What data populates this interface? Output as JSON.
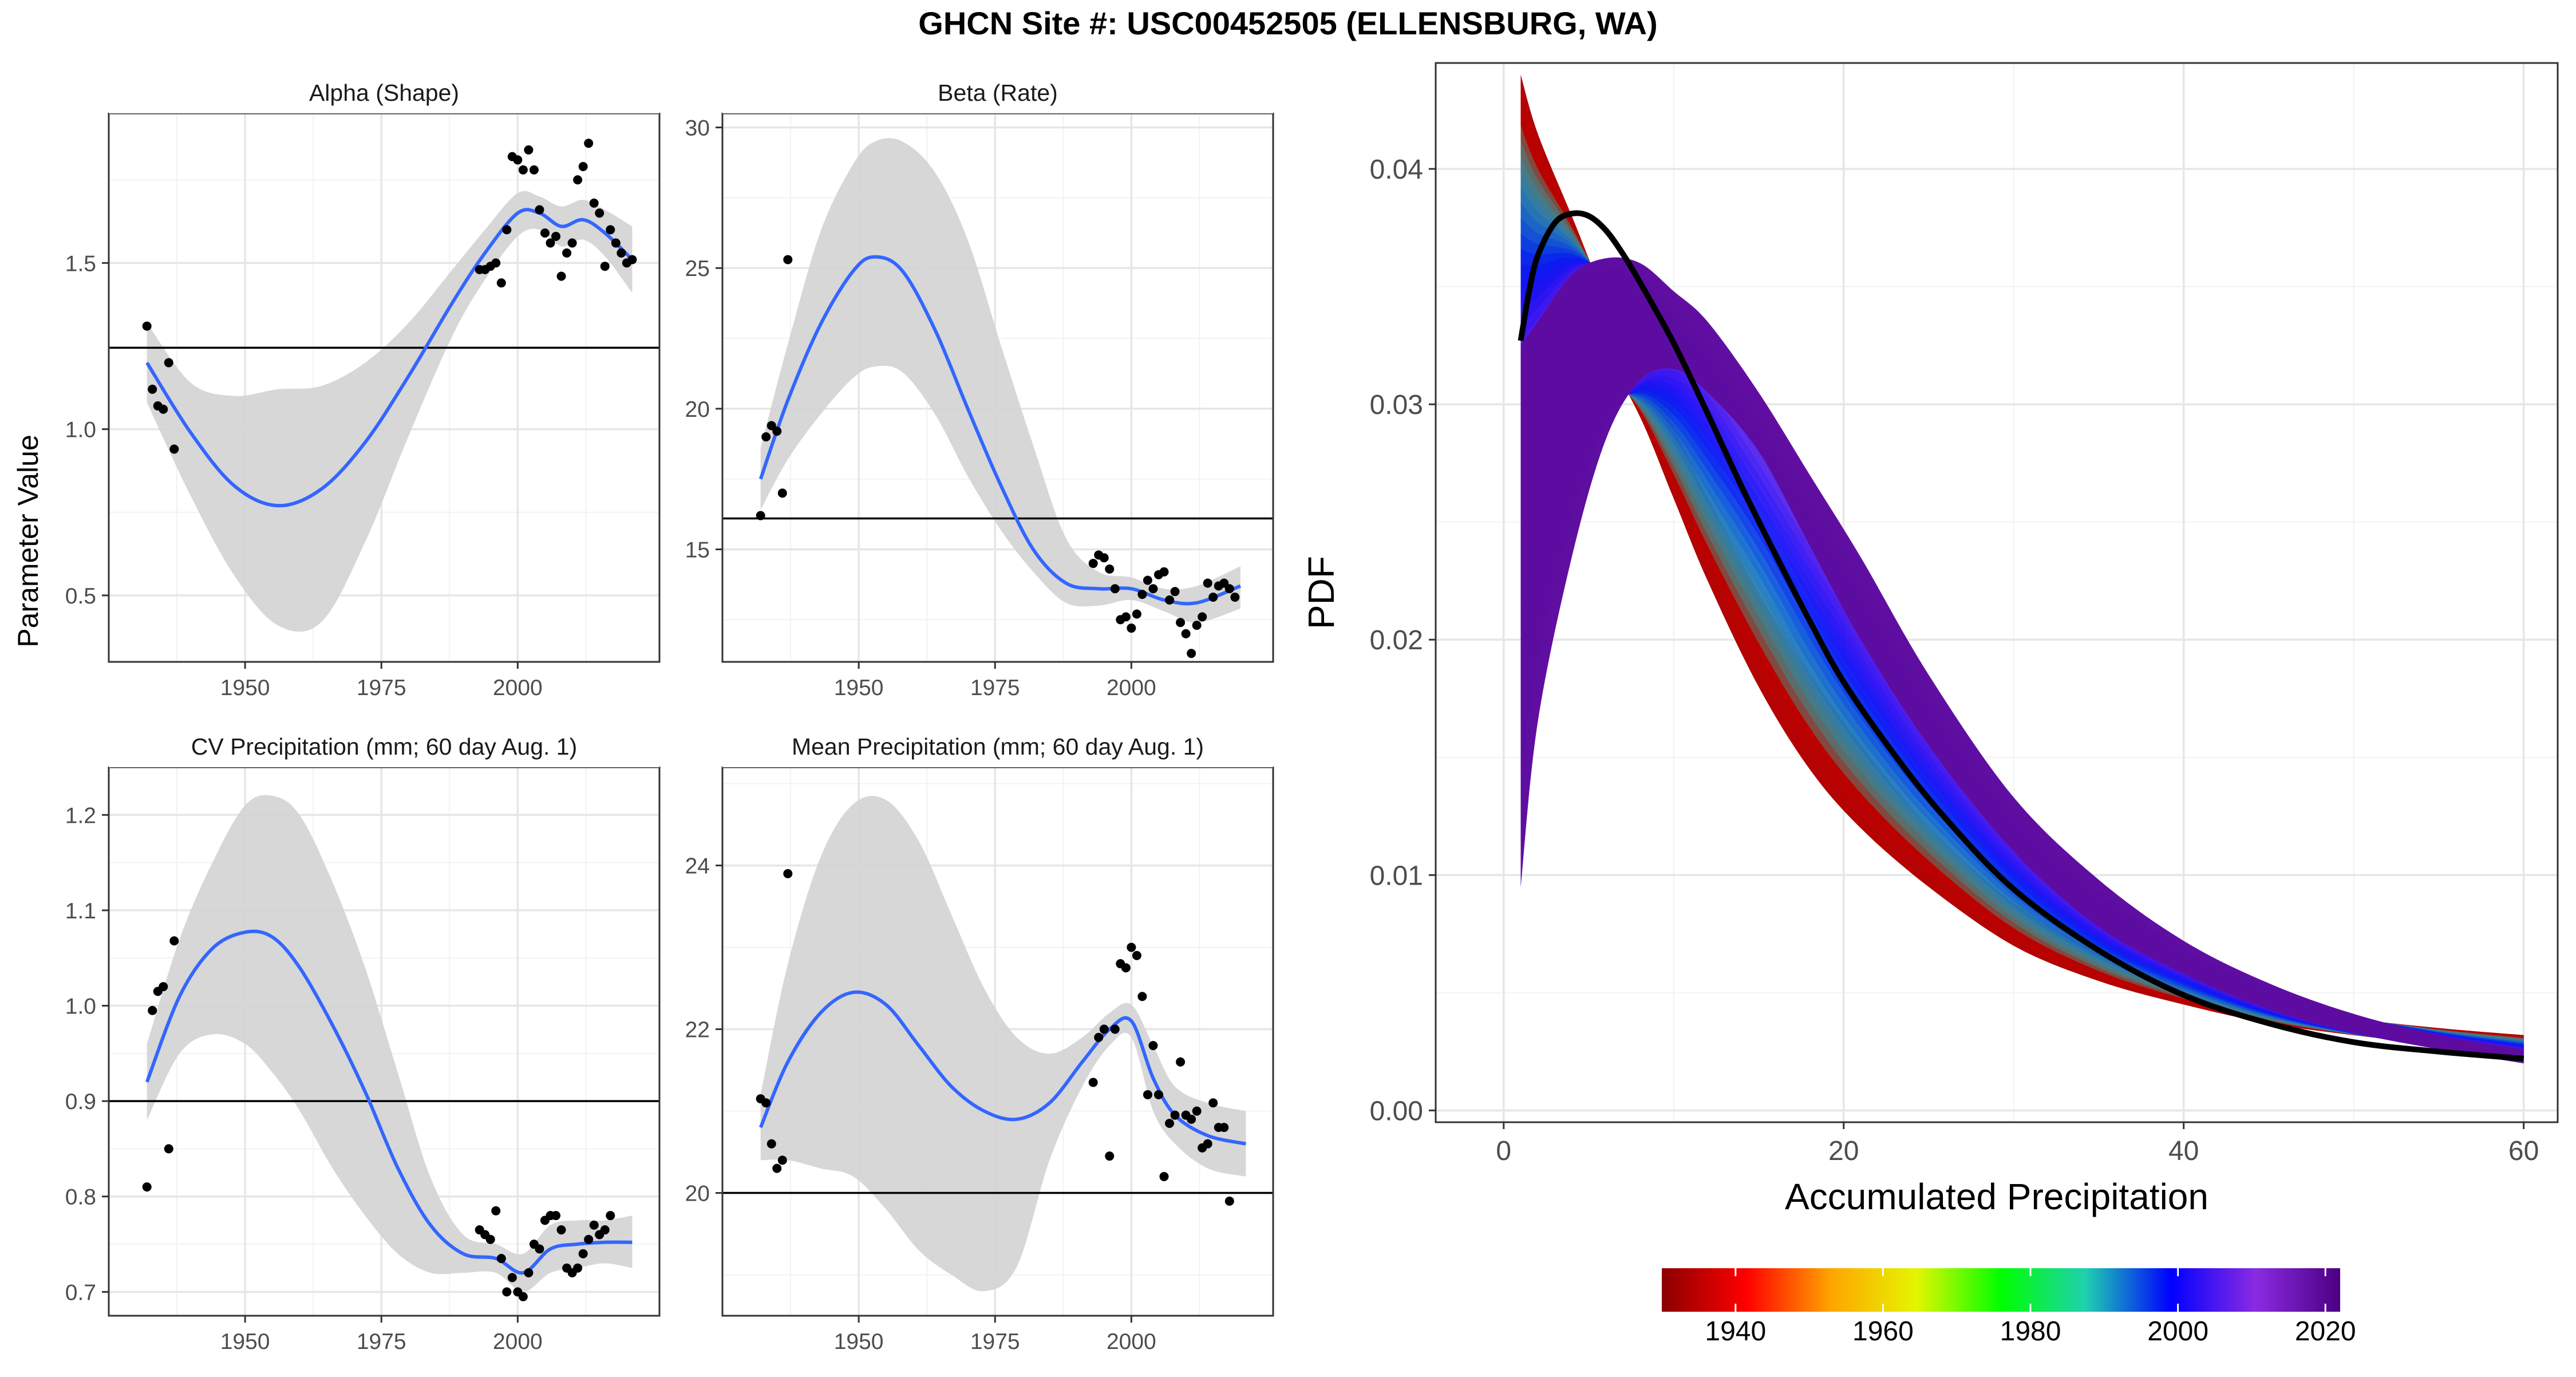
{
  "title": "GHCN Site #: USC00452505 (ELLENSBURG, WA)",
  "shared_ylabel": "Parameter Value",
  "colors": {
    "panel_border": "#333333",
    "grid_major": "#e6e6e6",
    "grid_minor": "#f2f2f2",
    "smooth_line": "#3366ff",
    "ribbon": "#d3d3d3",
    "points": "#000000",
    "reference_line": "#000000",
    "pdf_current": "#000000"
  },
  "chart_data": [
    {
      "type": "scatter",
      "title": "Alpha (Shape)",
      "xlim": [
        1925,
        2026
      ],
      "ylim": [
        0.3,
        1.95
      ],
      "xticks": [
        1950,
        1975,
        2000
      ],
      "yticks": [
        0.5,
        1.0,
        1.5
      ],
      "ytick_labels": [
        "0.5",
        "1.0",
        "1.5"
      ],
      "hline": 1.245,
      "points": [
        [
          1932,
          1.31
        ],
        [
          1933,
          1.12
        ],
        [
          1934,
          1.07
        ],
        [
          1935,
          1.06
        ],
        [
          1936,
          1.2
        ],
        [
          1937,
          0.94
        ],
        [
          1993,
          1.48
        ],
        [
          1994,
          1.48
        ],
        [
          1995,
          1.49
        ],
        [
          1996,
          1.5
        ],
        [
          1997,
          1.44
        ],
        [
          1998,
          1.6
        ],
        [
          1999,
          1.82
        ],
        [
          2000,
          1.81
        ],
        [
          2001,
          1.78
        ],
        [
          2002,
          1.84
        ],
        [
          2003,
          1.78
        ],
        [
          2004,
          1.66
        ],
        [
          2005,
          1.59
        ],
        [
          2006,
          1.56
        ],
        [
          2007,
          1.58
        ],
        [
          2008,
          1.46
        ],
        [
          2009,
          1.53
        ],
        [
          2010,
          1.56
        ],
        [
          2011,
          1.75
        ],
        [
          2012,
          1.79
        ],
        [
          2013,
          1.86
        ],
        [
          2014,
          1.68
        ],
        [
          2015,
          1.65
        ],
        [
          2016,
          1.49
        ],
        [
          2017,
          1.6
        ],
        [
          2018,
          1.56
        ],
        [
          2019,
          1.53
        ],
        [
          2020,
          1.5
        ],
        [
          2021,
          1.51
        ]
      ],
      "smooth_x": [
        1932,
        1940,
        1948,
        1956,
        1964,
        1972,
        1980,
        1988,
        1994,
        2000,
        2004,
        2008,
        2012,
        2016,
        2021
      ],
      "smooth_y": [
        1.2,
        0.99,
        0.83,
        0.77,
        0.82,
        0.96,
        1.16,
        1.38,
        1.53,
        1.65,
        1.65,
        1.61,
        1.63,
        1.59,
        1.51
      ],
      "ribbon_upper": [
        1.32,
        1.14,
        1.1,
        1.12,
        1.13,
        1.2,
        1.32,
        1.48,
        1.6,
        1.71,
        1.7,
        1.67,
        1.69,
        1.66,
        1.61
      ],
      "ribbon_lower": [
        1.08,
        0.8,
        0.56,
        0.41,
        0.42,
        0.66,
        0.98,
        1.28,
        1.45,
        1.58,
        1.6,
        1.55,
        1.57,
        1.52,
        1.41
      ]
    },
    {
      "type": "scatter",
      "title": "Beta (Rate)",
      "xlim": [
        1925,
        2026
      ],
      "ylim": [
        11,
        30.5
      ],
      "xticks": [
        1950,
        1975,
        2000
      ],
      "yticks": [
        15,
        20,
        25,
        30
      ],
      "ytick_labels": [
        "15",
        "20",
        "25",
        "30"
      ],
      "hline": 16.1,
      "points": [
        [
          1932,
          16.2
        ],
        [
          1933,
          19
        ],
        [
          1934,
          19.4
        ],
        [
          1935,
          19.2
        ],
        [
          1936,
          17
        ],
        [
          1937,
          25.3
        ],
        [
          1993,
          14.5
        ],
        [
          1994,
          14.8
        ],
        [
          1995,
          14.7
        ],
        [
          1996,
          14.3
        ],
        [
          1997,
          13.6
        ],
        [
          1998,
          12.5
        ],
        [
          1999,
          12.6
        ],
        [
          2000,
          12.2
        ],
        [
          2001,
          12.7
        ],
        [
          2002,
          13.4
        ],
        [
          2003,
          13.9
        ],
        [
          2004,
          13.6
        ],
        [
          2005,
          14.1
        ],
        [
          2006,
          14.2
        ],
        [
          2007,
          13.2
        ],
        [
          2008,
          13.5
        ],
        [
          2009,
          12.4
        ],
        [
          2010,
          12
        ],
        [
          2011,
          11.3
        ],
        [
          2012,
          12.3
        ],
        [
          2013,
          12.6
        ],
        [
          2014,
          13.8
        ],
        [
          2015,
          13.3
        ],
        [
          2016,
          13.7
        ],
        [
          2017,
          13.8
        ],
        [
          2018,
          13.6
        ],
        [
          2019,
          13.3
        ]
      ],
      "smooth_x": [
        1932,
        1937,
        1943,
        1949,
        1953,
        1958,
        1964,
        1970,
        1976,
        1982,
        1988,
        1994,
        2000,
        2006,
        2012,
        2020
      ],
      "smooth_y": [
        17.5,
        20.3,
        23,
        24.9,
        25.4,
        24.9,
        22.8,
        20,
        17.3,
        15,
        13.8,
        13.6,
        13.6,
        13.2,
        13.1,
        13.7
      ],
      "ribbon_upper": [
        18.6,
        22.3,
        26.3,
        28.7,
        29.5,
        29.5,
        28.4,
        26,
        22.3,
        18.7,
        15.4,
        14.2,
        14,
        13.6,
        13.7,
        14.4
      ],
      "ribbon_lower": [
        16.4,
        18.2,
        19.8,
        21.1,
        21.5,
        21.3,
        19.8,
        17.6,
        15.7,
        14.2,
        13.1,
        13,
        13.2,
        12.8,
        12.4,
        12.9
      ]
    },
    {
      "type": "scatter",
      "title": "CV Precipitation (mm; 60 day Aug. 1)",
      "xlim": [
        1925,
        2026
      ],
      "ylim": [
        0.675,
        1.25
      ],
      "xticks": [
        1950,
        1975,
        2000
      ],
      "yticks": [
        0.7,
        0.8,
        0.9,
        1.0,
        1.1,
        1.2
      ],
      "ytick_labels": [
        "0.7",
        "0.8",
        "0.9",
        "1.0",
        "1.1",
        "1.2"
      ],
      "hline": 0.9,
      "points": [
        [
          1932,
          0.81
        ],
        [
          1933,
          0.995
        ],
        [
          1934,
          1.015
        ],
        [
          1935,
          1.02
        ],
        [
          1936,
          0.85
        ],
        [
          1937,
          1.068
        ],
        [
          1993,
          0.765
        ],
        [
          1994,
          0.76
        ],
        [
          1995,
          0.755
        ],
        [
          1996,
          0.785
        ],
        [
          1997,
          0.735
        ],
        [
          1998,
          0.7
        ],
        [
          1999,
          0.715
        ],
        [
          2000,
          0.7
        ],
        [
          2001,
          0.695
        ],
        [
          2002,
          0.72
        ],
        [
          2003,
          0.75
        ],
        [
          2004,
          0.745
        ],
        [
          2005,
          0.775
        ],
        [
          2006,
          0.78
        ],
        [
          2007,
          0.78
        ],
        [
          2008,
          0.765
        ],
        [
          2009,
          0.725
        ],
        [
          2010,
          0.72
        ],
        [
          2011,
          0.725
        ],
        [
          2012,
          0.74
        ],
        [
          2013,
          0.755
        ],
        [
          2014,
          0.77
        ],
        [
          2015,
          0.76
        ],
        [
          2016,
          0.765
        ],
        [
          2017,
          0.78
        ]
      ],
      "smooth_x": [
        1932,
        1938,
        1944,
        1950,
        1955,
        1960,
        1966,
        1972,
        1978,
        1984,
        1990,
        1996,
        2001,
        2006,
        2011,
        2016,
        2021
      ],
      "smooth_y": [
        0.92,
        1.01,
        1.06,
        1.077,
        1.072,
        1.04,
        0.98,
        0.91,
        0.83,
        0.77,
        0.74,
        0.735,
        0.72,
        0.745,
        0.75,
        0.752,
        0.752
      ],
      "ribbon_upper": [
        0.96,
        1.07,
        1.15,
        1.21,
        1.22,
        1.2,
        1.13,
        1.04,
        0.93,
        0.82,
        0.76,
        0.75,
        0.74,
        0.77,
        0.775,
        0.775,
        0.78
      ],
      "ribbon_lower": [
        0.88,
        0.95,
        0.97,
        0.96,
        0.93,
        0.89,
        0.83,
        0.78,
        0.74,
        0.72,
        0.72,
        0.72,
        0.7,
        0.72,
        0.725,
        0.73,
        0.725
      ]
    },
    {
      "type": "scatter",
      "title": "Mean Precipitation (mm; 60 day Aug. 1)",
      "xlim": [
        1925,
        2026
      ],
      "ylim": [
        18.5,
        25.2
      ],
      "xticks": [
        1950,
        1975,
        2000
      ],
      "yticks": [
        20,
        22,
        24
      ],
      "ytick_labels": [
        "20",
        "22",
        "24"
      ],
      "hline": 20,
      "points": [
        [
          1932,
          21.15
        ],
        [
          1933,
          21.1
        ],
        [
          1934,
          20.6
        ],
        [
          1935,
          20.3
        ],
        [
          1936,
          20.4
        ],
        [
          1937,
          23.9
        ],
        [
          1993,
          21.35
        ],
        [
          1994,
          21.9
        ],
        [
          1995,
          22
        ],
        [
          1996,
          20.45
        ],
        [
          1997,
          22
        ],
        [
          1998,
          22.8
        ],
        [
          1999,
          22.75
        ],
        [
          2000,
          23
        ],
        [
          2001,
          22.9
        ],
        [
          2002,
          22.4
        ],
        [
          2003,
          21.2
        ],
        [
          2004,
          21.8
        ],
        [
          2005,
          21.2
        ],
        [
          2006,
          20.2
        ],
        [
          2007,
          20.85
        ],
        [
          2008,
          20.95
        ],
        [
          2009,
          21.6
        ],
        [
          2010,
          20.95
        ],
        [
          2011,
          20.9
        ],
        [
          2012,
          21
        ],
        [
          2013,
          20.55
        ],
        [
          2014,
          20.6
        ],
        [
          2015,
          21.1
        ],
        [
          2016,
          20.8
        ],
        [
          2017,
          20.8
        ],
        [
          2018,
          19.9
        ]
      ],
      "smooth_x": [
        1932,
        1937,
        1943,
        1949,
        1955,
        1961,
        1967,
        1973,
        1979,
        1985,
        1991,
        1996,
        2000,
        2004,
        2008,
        2014,
        2021
      ],
      "smooth_y": [
        20.8,
        21.6,
        22.2,
        22.45,
        22.3,
        21.8,
        21.3,
        21,
        20.9,
        21.1,
        21.6,
        22,
        22.1,
        21.4,
        20.95,
        20.7,
        20.6
      ],
      "ribbon_upper": [
        21.2,
        22.8,
        24.1,
        24.75,
        24.8,
        24.3,
        23.4,
        22.5,
        21.9,
        21.7,
        21.9,
        22.2,
        22.3,
        21.8,
        21.3,
        21.1,
        21
      ],
      "ribbon_lower": [
        20.4,
        20.4,
        20.3,
        20.2,
        19.8,
        19.3,
        19,
        18.8,
        19.1,
        20.4,
        21.3,
        21.8,
        21.9,
        21,
        20.6,
        20.3,
        20.2
      ]
    },
    {
      "type": "area",
      "xlabel": "Accumulated Precipitation",
      "ylabel": "PDF",
      "xlim": [
        -4,
        62
      ],
      "ylim": [
        -0.0005,
        0.0445
      ],
      "xticks": [
        0,
        20,
        40,
        60
      ],
      "yticks": [
        0.0,
        0.01,
        0.02,
        0.03,
        0.04
      ],
      "ytick_labels": [
        "0.00",
        "0.01",
        "0.02",
        "0.03",
        "0.04"
      ],
      "series_older": {
        "x": [
          1,
          2,
          4,
          6,
          8,
          10,
          12,
          15,
          18,
          21,
          25,
          30,
          35,
          40,
          45,
          50,
          55,
          60
        ],
        "upper": [
          0.044,
          0.0415,
          0.038,
          0.0345,
          0.032,
          0.029,
          0.026,
          0.022,
          0.0185,
          0.0155,
          0.012,
          0.0088,
          0.0067,
          0.0053,
          0.0045,
          0.0039,
          0.0035,
          0.0032
        ],
        "lower": [
          0.0315,
          0.0333,
          0.0335,
          0.032,
          0.0295,
          0.026,
          0.0225,
          0.018,
          0.0145,
          0.012,
          0.0095,
          0.007,
          0.0055,
          0.0045,
          0.0037,
          0.0032,
          0.0028,
          0.0025
        ]
      },
      "series_newer": {
        "x": [
          1,
          2,
          4,
          6,
          8,
          10,
          12,
          15,
          18,
          21,
          25,
          30,
          35,
          40,
          45,
          50,
          55,
          60
        ],
        "upper": [
          0.0325,
          0.0335,
          0.0355,
          0.0362,
          0.036,
          0.0348,
          0.0335,
          0.0305,
          0.027,
          0.0235,
          0.0185,
          0.0133,
          0.0098,
          0.0072,
          0.0054,
          0.0041,
          0.0032,
          0.0026
        ],
        "lower": [
          0.0095,
          0.0165,
          0.0235,
          0.0285,
          0.031,
          0.0315,
          0.0305,
          0.028,
          0.024,
          0.02,
          0.0155,
          0.011,
          0.0078,
          0.0058,
          0.0043,
          0.0033,
          0.0026,
          0.002
        ]
      },
      "current_curve": {
        "x": [
          1,
          1.5,
          2,
          3,
          4,
          5,
          6,
          7,
          8,
          10,
          12,
          14,
          16,
          18,
          20,
          23,
          26,
          30,
          35,
          40,
          45,
          50,
          55,
          60
        ],
        "y": [
          0.0327,
          0.0348,
          0.0363,
          0.0377,
          0.0381,
          0.038,
          0.0374,
          0.0364,
          0.0352,
          0.0326,
          0.0296,
          0.0265,
          0.0236,
          0.0208,
          0.0182,
          0.0151,
          0.0124,
          0.0094,
          0.0068,
          0.0049,
          0.0037,
          0.0029,
          0.0025,
          0.0022
        ]
      }
    }
  ],
  "colorbar": {
    "tick_years": [
      1940,
      1960,
      1980,
      2000,
      2020
    ],
    "tick_labels": [
      "1940",
      "1960",
      "1980",
      "2000",
      "2020"
    ],
    "range": [
      1930,
      2022
    ],
    "stops": [
      "#8b0000",
      "#ff0000",
      "#ffa500",
      "#e5f500",
      "#00ff00",
      "#1fd0b0",
      "#0000ff",
      "#8a2be2",
      "#4b0082"
    ]
  }
}
